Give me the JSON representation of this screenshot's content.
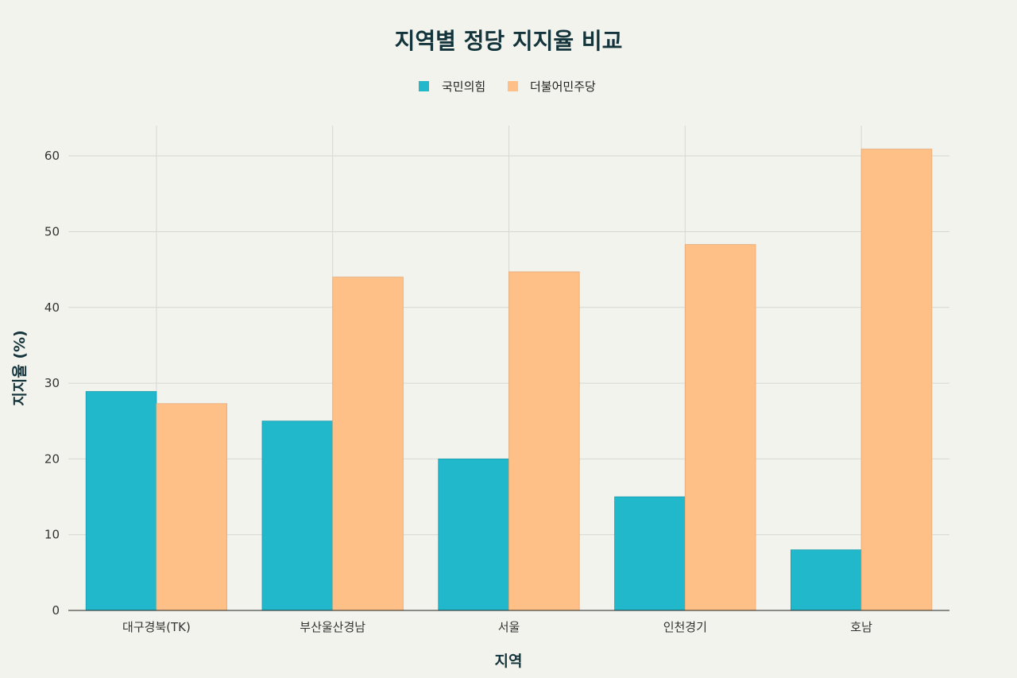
{
  "chart_data": {
    "type": "bar",
    "title": "지역별 정당 지지율 비교",
    "xlabel": "지역",
    "ylabel": "지지율 (%)",
    "categories": [
      "대구경북(TK)",
      "부산울산경남",
      "서울",
      "인천경기",
      "호남"
    ],
    "series": [
      {
        "name": "국민의힘",
        "color": "#21b8cc",
        "values": [
          28.9,
          25.0,
          20.0,
          15.0,
          8.0
        ]
      },
      {
        "name": "더불어민주당",
        "color": "#ffc087",
        "values": [
          27.3,
          44.0,
          44.7,
          48.3,
          60.9
        ]
      }
    ],
    "ylim": [
      0,
      64
    ],
    "yticks": [
      0,
      10,
      20,
      30,
      40,
      50,
      60
    ],
    "grid": true,
    "legend": "top-center"
  }
}
